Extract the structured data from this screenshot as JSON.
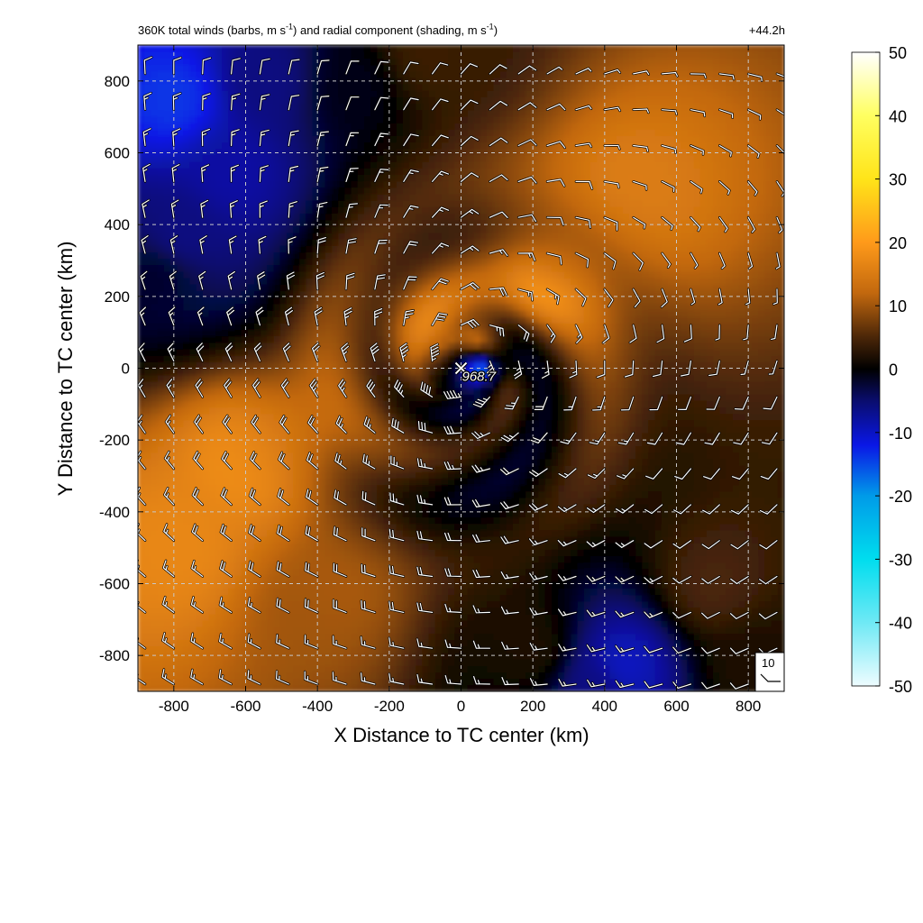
{
  "chart_data": {
    "type": "heatmap",
    "title": {
      "part1": "360K total winds (barbs, m s",
      "sup1": "-1",
      "part2": ") and radial component (shading, m s",
      "sup2": "-1",
      "part3": ")"
    },
    "time_label": "+44.2h",
    "xlabel": "X Distance to TC center (km)",
    "ylabel": "Y Distance to TC center (km)",
    "xlim": [
      -900,
      900
    ],
    "ylim": [
      -900,
      900
    ],
    "x_ticks": [
      -800,
      -600,
      -400,
      -200,
      0,
      200,
      400,
      600,
      800
    ],
    "y_ticks": [
      -800,
      -600,
      -400,
      -200,
      0,
      200,
      400,
      600,
      800
    ],
    "grid": true,
    "center_marker": {
      "x": 0,
      "y": 0,
      "label": "968.7"
    },
    "barb_reference": {
      "value": "10"
    },
    "colorbar": {
      "min": -50,
      "max": 50,
      "ticks": [
        50,
        40,
        30,
        20,
        10,
        0,
        -10,
        -20,
        -30,
        -40,
        -50
      ],
      "stops": [
        {
          "value": -50,
          "color": "#eefcff"
        },
        {
          "value": -40,
          "color": "#6fe9f5"
        },
        {
          "value": -30,
          "color": "#00ddee"
        },
        {
          "value": -20,
          "color": "#009be8"
        },
        {
          "value": -12,
          "color": "#0a17e6"
        },
        {
          "value": -5,
          "color": "#0a0d6e"
        },
        {
          "value": 0,
          "color": "#000000"
        },
        {
          "value": 5,
          "color": "#4a2608"
        },
        {
          "value": 12,
          "color": "#c2680e"
        },
        {
          "value": 20,
          "color": "#ff9a1a"
        },
        {
          "value": 30,
          "color": "#ffe419"
        },
        {
          "value": 40,
          "color": "#ffff60"
        },
        {
          "value": 50,
          "color": "#ffffff"
        }
      ]
    },
    "radial_wind_field_features": [
      {
        "x": -800,
        "y": 750,
        "value": -14
      },
      {
        "x": -650,
        "y": 550,
        "value": -8
      },
      {
        "x": -780,
        "y": 380,
        "value": -6
      },
      {
        "x": -850,
        "y": 250,
        "value": -2
      },
      {
        "x": -300,
        "y": 780,
        "value": -1
      },
      {
        "x": -100,
        "y": 880,
        "value": 4
      },
      {
        "x": -550,
        "y": 800,
        "value": -6
      },
      {
        "x": 60,
        "y": 0,
        "value": -12
      },
      {
        "x": 20,
        "y": 30,
        "value": -10
      },
      {
        "x": 30,
        "y": 60,
        "value": 22
      },
      {
        "x": -60,
        "y": 100,
        "value": 16
      },
      {
        "x": 120,
        "y": -70,
        "value": 4
      },
      {
        "x": 450,
        "y": -830,
        "value": -10
      },
      {
        "x": 380,
        "y": -880,
        "value": -6
      },
      {
        "x": 200,
        "y": -780,
        "value": 2
      },
      {
        "x": 820,
        "y": -820,
        "value": 2
      },
      {
        "x": 700,
        "y": -600,
        "value": 5
      },
      {
        "x": -600,
        "y": -250,
        "value": 18
      },
      {
        "x": -800,
        "y": -500,
        "value": 17
      },
      {
        "x": -400,
        "y": -650,
        "value": 10
      },
      {
        "x": 500,
        "y": 500,
        "value": 15
      },
      {
        "x": 250,
        "y": 250,
        "value": 15
      }
    ],
    "barb_vortex": {
      "center": [
        0,
        0
      ],
      "rmax_km": 80,
      "vmax_ms": 40,
      "steering_u_ms": 5,
      "steering_v_ms": -4
    }
  }
}
